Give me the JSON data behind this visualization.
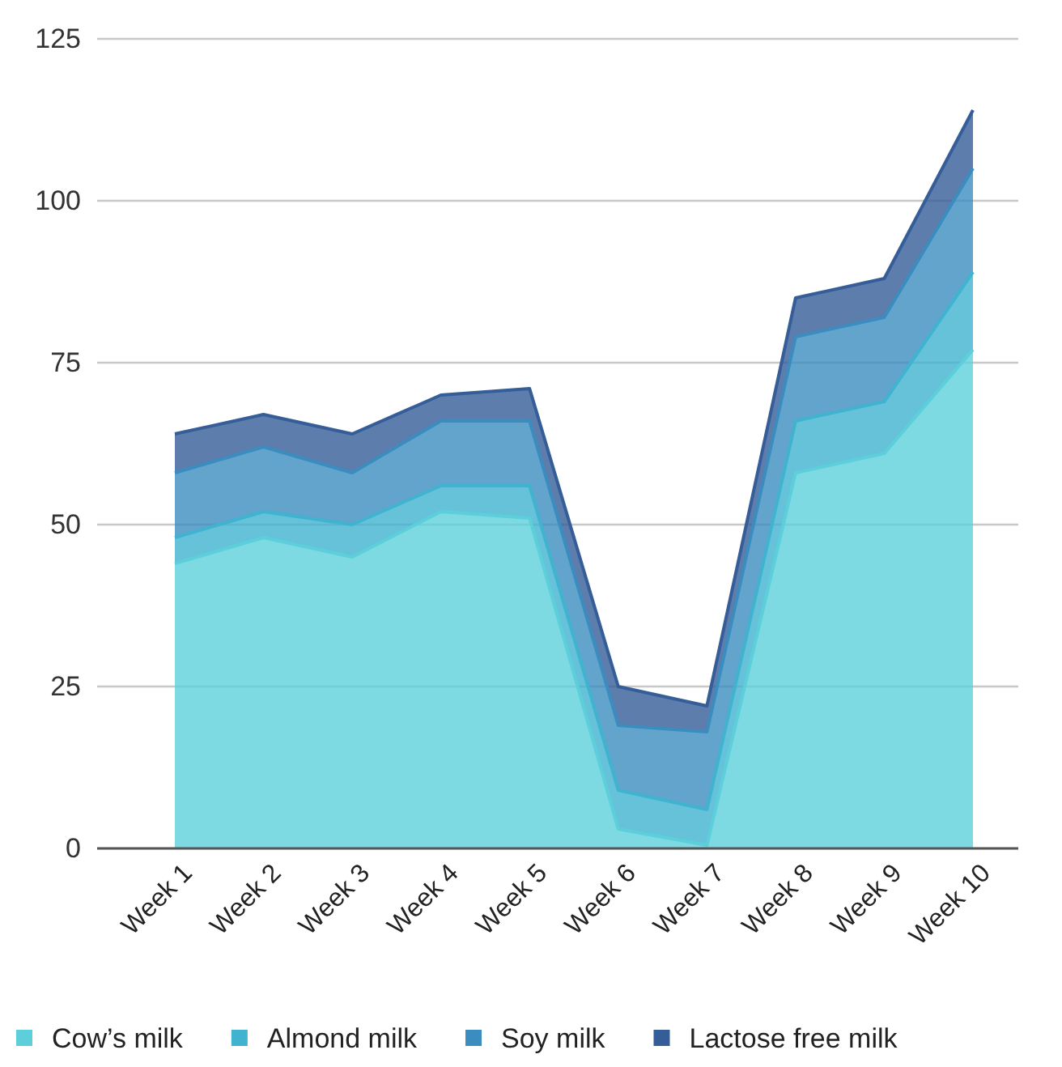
{
  "chart_data": {
    "type": "area",
    "stacked": true,
    "categories": [
      "Week 1",
      "Week 2",
      "Week 3",
      "Week 4",
      "Week 5",
      "Week 6",
      "Week 7",
      "Week 8",
      "Week 9",
      "Week 10"
    ],
    "series": [
      {
        "name": "Cow’s milk",
        "color": "#5ccfdb",
        "values": [
          44,
          48,
          45,
          52,
          51,
          3,
          0.5,
          58,
          61,
          77
        ]
      },
      {
        "name": "Almond milk",
        "color": "#3fb3cf",
        "values": [
          4,
          4,
          5,
          4,
          5,
          6,
          5.5,
          8,
          8,
          12
        ]
      },
      {
        "name": "Soy milk",
        "color": "#3b8dbf",
        "values": [
          10,
          10,
          8,
          10,
          10,
          10,
          12,
          13,
          13,
          16
        ]
      },
      {
        "name": "Lactose free milk",
        "color": "#355d98",
        "values": [
          6,
          5,
          6,
          4,
          5,
          6,
          4,
          6,
          6,
          9
        ]
      }
    ],
    "ylim": [
      0,
      125
    ],
    "yticks": [
      0,
      25,
      50,
      75,
      100,
      125
    ],
    "grid": "y",
    "legend": "bottom"
  }
}
